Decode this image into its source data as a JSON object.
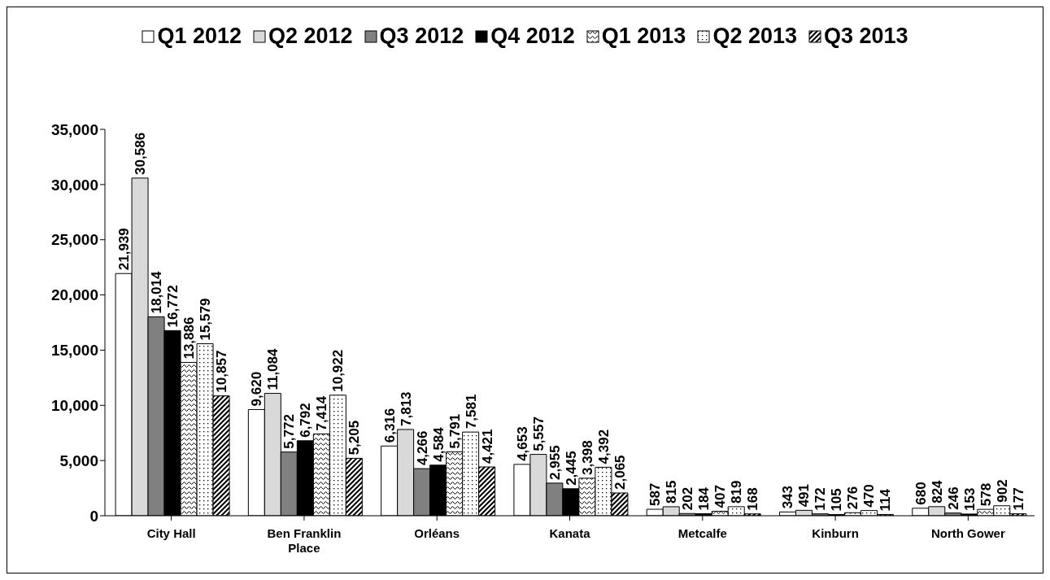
{
  "chart_data": {
    "type": "bar",
    "categories": [
      "City Hall",
      "Ben Franklin Place",
      "Orléans",
      "Kanata",
      "Metcalfe",
      "Kinburn",
      "North Gower"
    ],
    "series": [
      {
        "name": "Q1 2012",
        "color": "#ffffff",
        "values": [
          21939,
          9620,
          6316,
          4653,
          587,
          343,
          680
        ],
        "value_labels": [
          "21,939",
          "9,620",
          "6,316",
          "4,653",
          "587",
          "343",
          "680"
        ]
      },
      {
        "name": "Q2 2012",
        "color": "#d9d9d9",
        "values": [
          30586,
          11084,
          7813,
          5557,
          815,
          491,
          824
        ],
        "value_labels": [
          "30,586",
          "11,084",
          "7,813",
          "5,557",
          "815",
          "491",
          "824"
        ]
      },
      {
        "name": "Q3 2012",
        "color": "#808080",
        "values": [
          18014,
          5772,
          4266,
          2955,
          202,
          172,
          246
        ],
        "value_labels": [
          "18,014",
          "5,772",
          "4,266",
          "2,955",
          "202",
          "172",
          "246"
        ]
      },
      {
        "name": "Q4 2012",
        "color": "#000000",
        "values": [
          16772,
          6792,
          4584,
          2445,
          184,
          105,
          153
        ],
        "value_labels": [
          "16,772",
          "6,792",
          "4,584",
          "2,445",
          "184",
          "105",
          "153"
        ]
      },
      {
        "name": "Q1 2013",
        "color": "#000000",
        "values": [
          13886,
          7414,
          5791,
          3398,
          407,
          276,
          578
        ],
        "value_labels": [
          "13,886",
          "7,414",
          "5,791",
          "3,398",
          "407",
          "276",
          "578"
        ]
      },
      {
        "name": "Q2 2013",
        "color": "#000000",
        "values": [
          15579,
          10922,
          7581,
          4392,
          819,
          470,
          902
        ],
        "value_labels": [
          "15,579",
          "10,922",
          "7,581",
          "4,392",
          "819",
          "470",
          "902"
        ]
      },
      {
        "name": "Q3 2013",
        "color": "#000000",
        "values": [
          10857,
          5205,
          4421,
          2065,
          168,
          114,
          177
        ],
        "value_labels": [
          "10,857",
          "5,205",
          "4,421",
          "2,065",
          "168",
          "114",
          "177"
        ]
      }
    ],
    "ylim": [
      0,
      35000
    ],
    "yticks": [
      {
        "value": 0,
        "label": "0"
      },
      {
        "value": 5000,
        "label": "5,000"
      },
      {
        "value": 10000,
        "label": "10,000"
      },
      {
        "value": 15000,
        "label": "15,000"
      },
      {
        "value": 20000,
        "label": "20,000"
      },
      {
        "value": 25000,
        "label": "25,000"
      },
      {
        "value": 30000,
        "label": "30,000"
      },
      {
        "value": 35000,
        "label": "35,000"
      }
    ],
    "grid": false,
    "legend": "top"
  }
}
